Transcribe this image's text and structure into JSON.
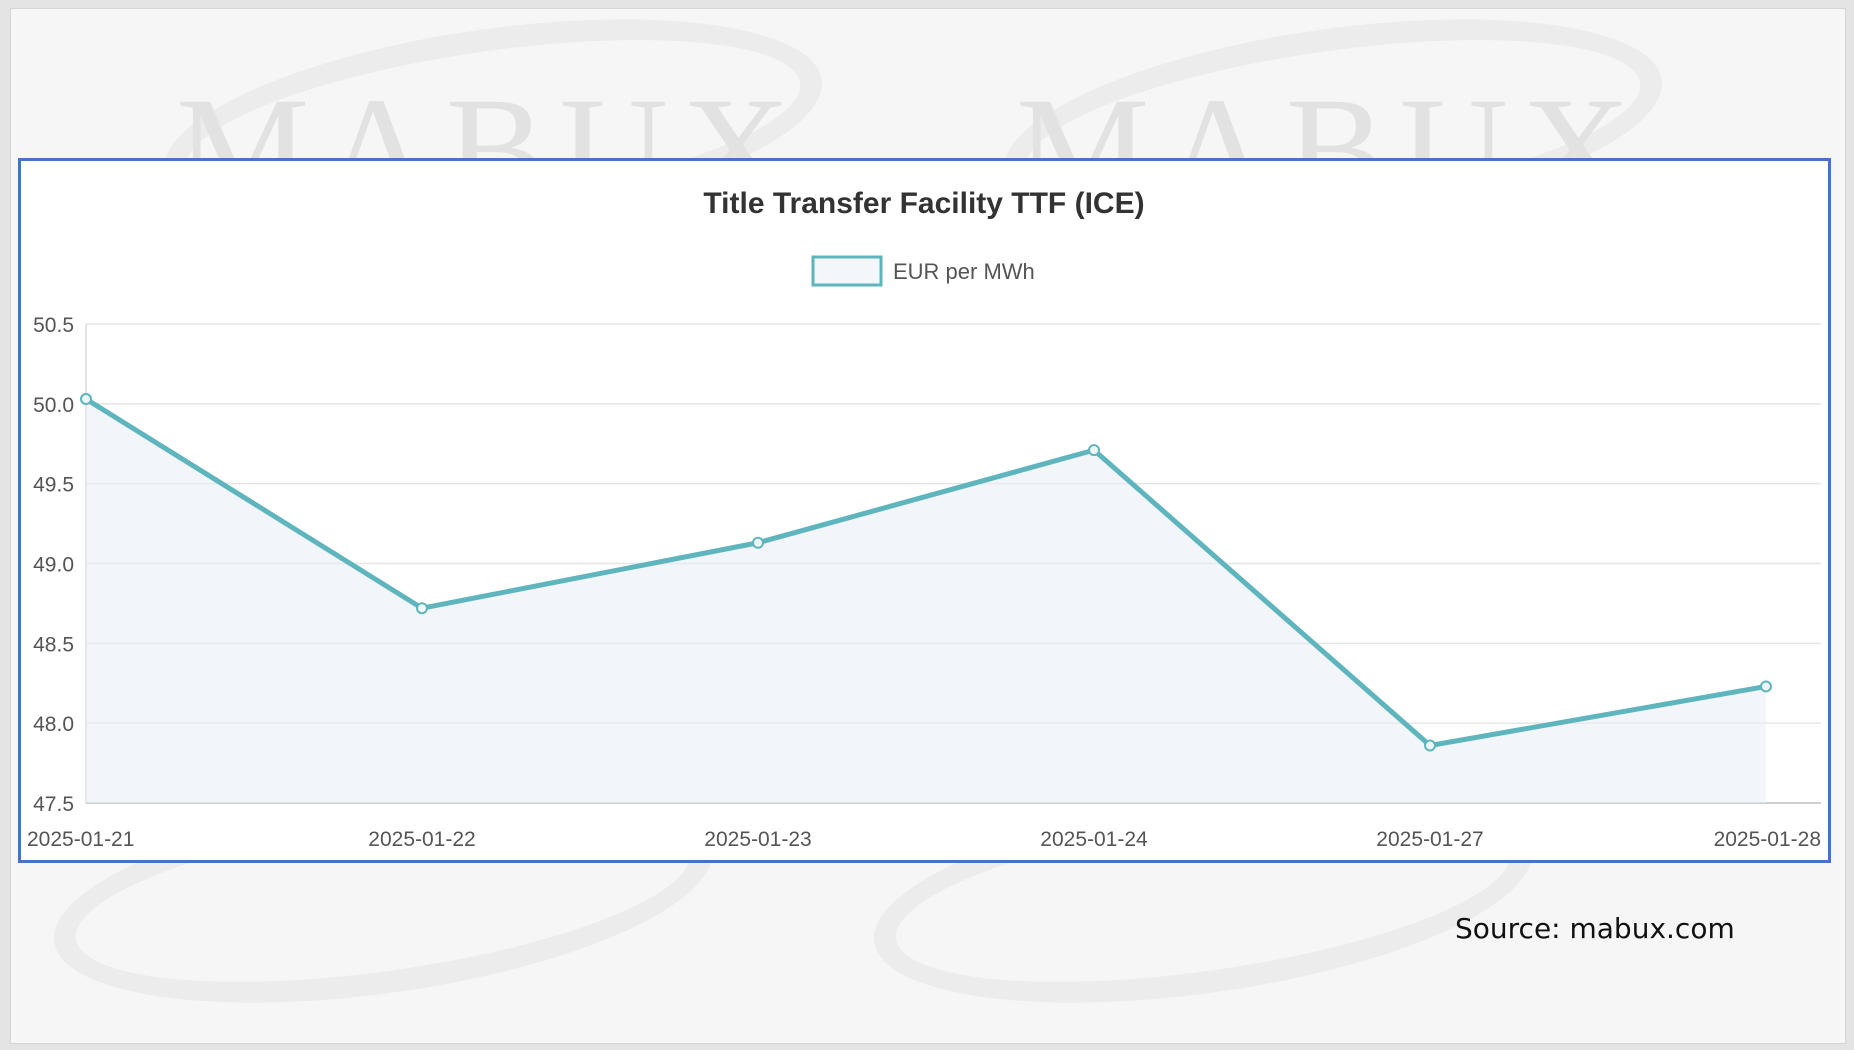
{
  "watermark": {
    "text": "MABUX"
  },
  "source_text": "Source: mabux.com",
  "colors": {
    "line": "#5fb5bd",
    "fill": "rgba(232,236,244,0.55)",
    "frame": "#4a72c4"
  },
  "chart_data": {
    "type": "line",
    "title": "Title Transfer Facility TTF (ICE)",
    "categories": [
      "2025-01-21",
      "2025-01-22",
      "2025-01-23",
      "2025-01-24",
      "2025-01-27",
      "2025-01-28"
    ],
    "series": [
      {
        "name": "EUR per MWh",
        "values": [
          50.03,
          48.72,
          49.13,
          49.71,
          47.86,
          48.23
        ]
      }
    ],
    "y_ticks": [
      "50.5",
      "50.0",
      "49.5",
      "49.0",
      "48.5",
      "48.0",
      "47.5"
    ],
    "ylim": [
      47.5,
      50.5
    ],
    "grid": true,
    "legend": "top"
  }
}
